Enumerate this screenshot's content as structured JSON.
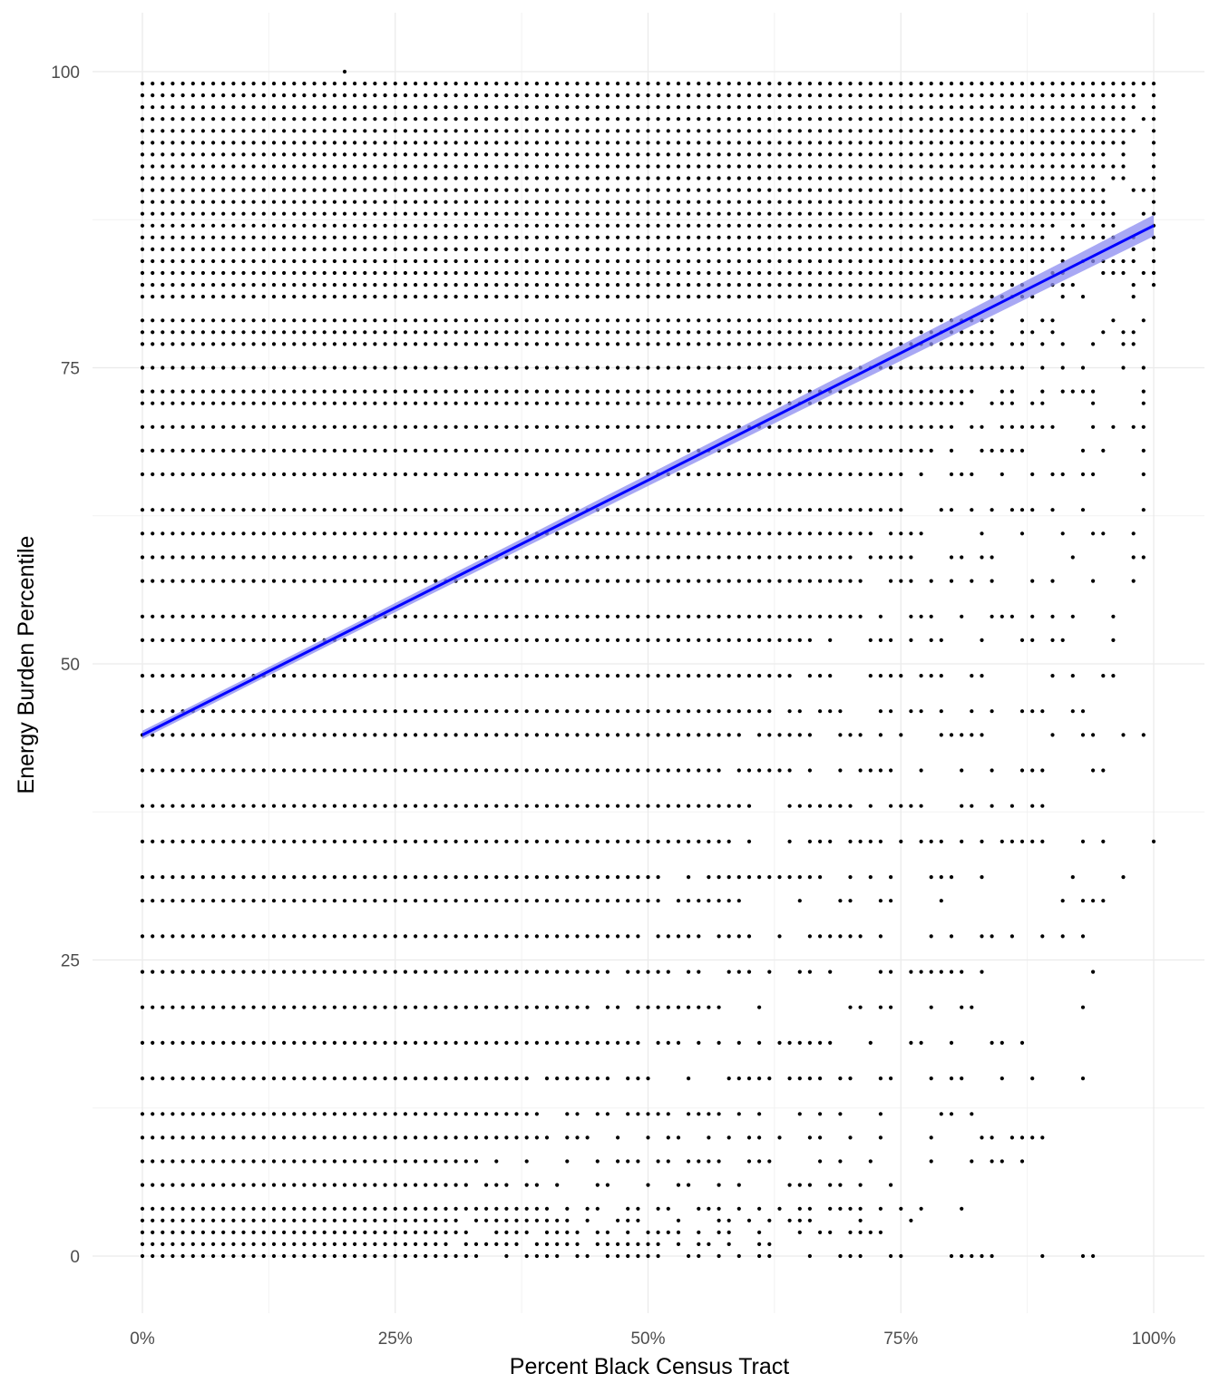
{
  "chart_data": {
    "type": "scatter",
    "title": "",
    "xlabel": "Percent Black Census Tract",
    "ylabel": "Energy Burden Percentile",
    "xlim": [
      -0.05,
      1.05
    ],
    "ylim": [
      -4.5,
      105
    ],
    "x_ticks": [
      {
        "value": 0,
        "label": "0%"
      },
      {
        "value": 0.25,
        "label": "25%"
      },
      {
        "value": 0.5,
        "label": "50%"
      },
      {
        "value": 0.75,
        "label": "75%"
      },
      {
        "value": 1,
        "label": "100%"
      }
    ],
    "y_ticks": [
      {
        "value": 0,
        "label": "0"
      },
      {
        "value": 25,
        "label": "25"
      },
      {
        "value": 50,
        "label": "50"
      },
      {
        "value": 75,
        "label": "75"
      },
      {
        "value": 100,
        "label": "100"
      }
    ],
    "grid": true,
    "point_color": "#000000",
    "x_step": 0.01,
    "y_levels": [
      0,
      1,
      2,
      3,
      4,
      6,
      8,
      10,
      12,
      15,
      18,
      21,
      24,
      27,
      30,
      32,
      35,
      38,
      41,
      44,
      46,
      49,
      52,
      54,
      57,
      59,
      61,
      63,
      66,
      68,
      70,
      72,
      73,
      75,
      77,
      78,
      79,
      81,
      82,
      83,
      84,
      85,
      86,
      87,
      88,
      89,
      90,
      91,
      92,
      93,
      94,
      95,
      96,
      97,
      98,
      99
    ],
    "row_max_x": [
      0.94,
      0.62,
      0.73,
      0.76,
      0.81,
      0.74,
      0.87,
      0.89,
      0.82,
      0.93,
      0.87,
      0.93,
      0.94,
      0.93,
      0.95,
      0.97,
      1.0,
      0.89,
      0.95,
      0.99,
      0.93,
      0.96,
      0.96,
      0.96,
      0.98,
      0.99,
      0.98,
      0.99,
      0.99,
      0.99,
      0.99,
      0.99,
      0.99,
      0.99,
      0.98,
      0.98,
      0.99,
      0.98,
      1.0,
      1.0,
      1.0,
      1.0,
      1.0,
      1.0,
      1.0,
      1.0,
      1.0,
      1.0,
      1.0,
      1.0,
      1.0,
      1.0,
      1.0,
      1.0,
      1.0,
      1.0
    ],
    "extra_points": [
      {
        "x": 0.2,
        "y": 100
      }
    ],
    "trend": {
      "method": "lm",
      "color": "#0000ff",
      "band_color": "#8b8bf0",
      "x": [
        0,
        1
      ],
      "y": [
        44,
        87
      ],
      "se_start": 0.35,
      "se_end": 0.9
    }
  }
}
